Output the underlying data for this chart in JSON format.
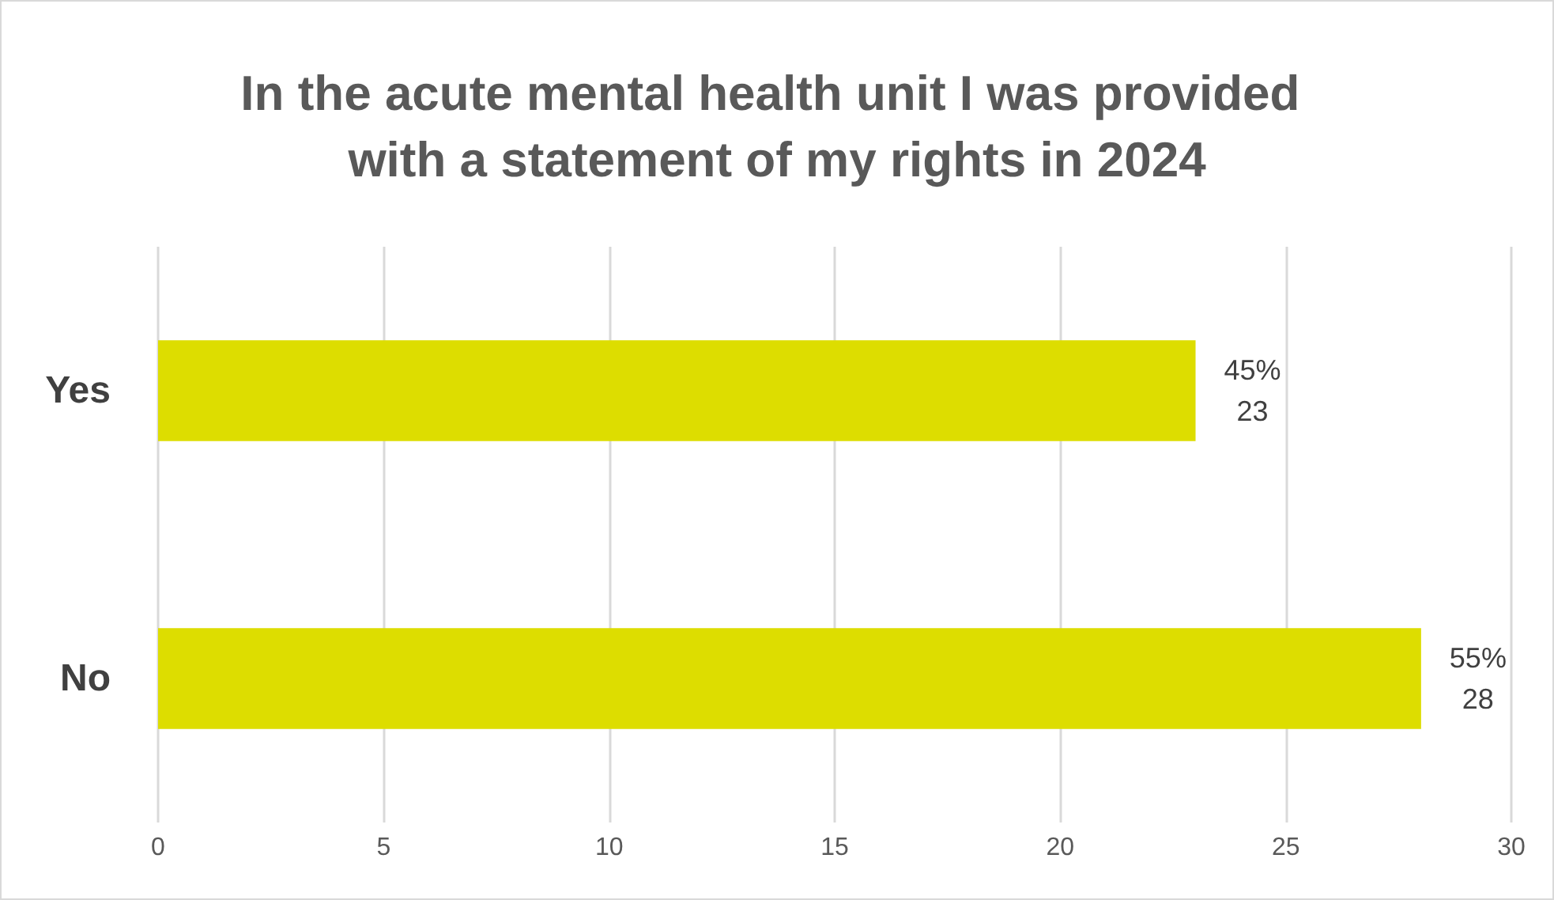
{
  "chart_data": {
    "type": "bar",
    "orientation": "horizontal",
    "title": "In the acute mental health unit I was provided with a statement of my rights in 2024",
    "categories": [
      "Yes",
      "No"
    ],
    "series": [
      {
        "color": "#dddd00",
        "values": [
          23,
          28
        ],
        "value_labels": [
          "45%\n23",
          "55%\n28"
        ]
      }
    ],
    "xlim": [
      0,
      30
    ],
    "xticks": [
      0,
      5,
      10,
      15,
      20,
      25,
      30
    ],
    "grid": "x"
  }
}
